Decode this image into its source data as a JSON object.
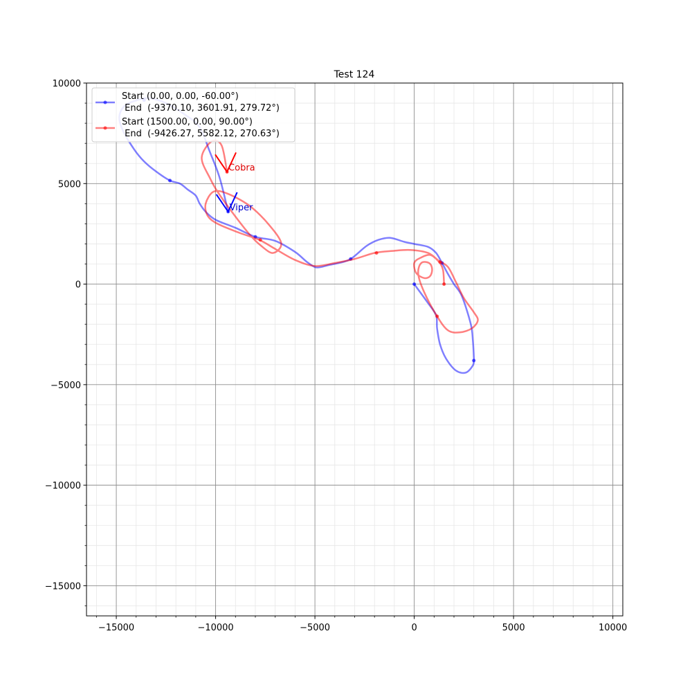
{
  "chart_data": {
    "type": "line",
    "title": "Test 124",
    "xlabel": "",
    "ylabel": "",
    "xlim": [
      -16500,
      10500
    ],
    "ylim": [
      -16500,
      10000
    ],
    "grid": true,
    "legend_location": "top-left",
    "x_ticks": [
      {
        "value": -15000,
        "label": "−15000"
      },
      {
        "value": -10000,
        "label": "−10000"
      },
      {
        "value": -5000,
        "label": "−5000"
      },
      {
        "value": 0,
        "label": "0"
      },
      {
        "value": 5000,
        "label": "5000"
      },
      {
        "value": 10000,
        "label": "10000"
      }
    ],
    "y_ticks": [
      {
        "value": 10000,
        "label": "10000"
      },
      {
        "value": 5000,
        "label": "5000"
      },
      {
        "value": 0,
        "label": "0"
      },
      {
        "value": -5000,
        "label": "−5000"
      },
      {
        "value": -10000,
        "label": "−10000"
      },
      {
        "value": -15000,
        "label": "−15000"
      }
    ],
    "series": [
      {
        "name": "Viper",
        "color": "#0000ff",
        "legend_line1": "Start (0.00, 0.00, -60.00°)",
        "legend_line2": " End  (-9370.10, 3601.91, 279.72°)",
        "label": "Viper",
        "label_color": "#0000cc",
        "end_heading_deg": 279.72,
        "path": [
          [
            0,
            0
          ],
          [
            700,
            -950
          ],
          [
            1100,
            -1550
          ],
          [
            1150,
            -2200
          ],
          [
            1300,
            -3000
          ],
          [
            1600,
            -3700
          ],
          [
            2100,
            -4300
          ],
          [
            2600,
            -4400
          ],
          [
            2950,
            -4050
          ],
          [
            3000,
            -3800
          ],
          [
            3000,
            -3600
          ],
          [
            2950,
            -2800
          ],
          [
            2850,
            -2000
          ],
          [
            2400,
            -600
          ],
          [
            2000,
            0
          ],
          [
            1700,
            500
          ],
          [
            1400,
            1050
          ],
          [
            1100,
            1550
          ],
          [
            700,
            1850
          ],
          [
            0,
            2000
          ],
          [
            -500,
            2100
          ],
          [
            -1200,
            2300
          ],
          [
            -1800,
            2200
          ],
          [
            -2400,
            1900
          ],
          [
            -3200,
            1250
          ],
          [
            -3800,
            1050
          ],
          [
            -4300,
            950
          ],
          [
            -4700,
            850
          ],
          [
            -5000,
            850
          ],
          [
            -5400,
            1100
          ],
          [
            -6000,
            1600
          ],
          [
            -7000,
            2150
          ],
          [
            -8000,
            2350
          ],
          [
            -9000,
            2800
          ],
          [
            -10000,
            3200
          ],
          [
            -10500,
            3600
          ],
          [
            -10800,
            4000
          ],
          [
            -11000,
            4400
          ],
          [
            -11400,
            4700
          ],
          [
            -11800,
            5000
          ],
          [
            -12300,
            5150
          ],
          [
            -13000,
            5600
          ],
          [
            -13600,
            6100
          ],
          [
            -14100,
            6700
          ],
          [
            -14650,
            7600
          ],
          [
            -14850,
            8300
          ],
          [
            -14600,
            8850
          ],
          [
            -14100,
            9100
          ],
          [
            -13400,
            9250
          ],
          [
            -12500,
            9000
          ],
          [
            -11500,
            8400
          ],
          [
            -10800,
            7800
          ],
          [
            -10300,
            6600
          ],
          [
            -9800,
            5300
          ],
          [
            -9370,
            3602
          ]
        ],
        "markers": [
          [
            0,
            0
          ],
          [
            3000,
            -3800
          ],
          [
            1400,
            1050
          ],
          [
            -3200,
            1250
          ],
          [
            -8000,
            2350
          ],
          [
            -12300,
            5150
          ],
          [
            -13600,
            9150
          ],
          [
            -9370,
            3602
          ]
        ]
      },
      {
        "name": "Cobra",
        "color": "#ff0000",
        "legend_line1": "Start (1500.00, 0.00, 90.00°)",
        "legend_line2": " End  (-9426.27, 5582.12, 270.63°)",
        "label": "Cobra",
        "label_color": "#dd0000",
        "end_heading_deg": 270.63,
        "path": [
          [
            1500,
            0
          ],
          [
            1450,
            700
          ],
          [
            1250,
            1100
          ],
          [
            800,
            1450
          ],
          [
            300,
            1300
          ],
          [
            0,
            1050
          ],
          [
            100,
            550
          ],
          [
            500,
            300
          ],
          [
            800,
            400
          ],
          [
            900,
            750
          ],
          [
            750,
            1050
          ],
          [
            350,
            1050
          ],
          [
            200,
            500
          ],
          [
            500,
            -400
          ],
          [
            1150,
            -1600
          ],
          [
            1700,
            -2300
          ],
          [
            2300,
            -2400
          ],
          [
            2900,
            -2200
          ],
          [
            3200,
            -1800
          ],
          [
            3000,
            -1400
          ],
          [
            2500,
            -700
          ],
          [
            2100,
            100
          ],
          [
            1700,
            850
          ],
          [
            1250,
            1150
          ],
          [
            700,
            1550
          ],
          [
            -200,
            1700
          ],
          [
            -1100,
            1650
          ],
          [
            -2000,
            1550
          ],
          [
            -3000,
            1250
          ],
          [
            -4000,
            1050
          ],
          [
            -5000,
            900
          ],
          [
            -6000,
            1200
          ],
          [
            -7000,
            1750
          ],
          [
            -7800,
            2200
          ],
          [
            -8800,
            2550
          ],
          [
            -9900,
            3000
          ],
          [
            -10400,
            3400
          ],
          [
            -10500,
            4000
          ],
          [
            -10100,
            4600
          ],
          [
            -9400,
            4500
          ],
          [
            -8300,
            3900
          ],
          [
            -7400,
            3050
          ],
          [
            -6700,
            2050
          ],
          [
            -7100,
            1550
          ],
          [
            -7700,
            1900
          ],
          [
            -8400,
            2600
          ],
          [
            -9700,
            4300
          ],
          [
            -10300,
            5300
          ],
          [
            -10700,
            6300
          ],
          [
            -10200,
            7100
          ],
          [
            -9700,
            6900
          ],
          [
            -9426,
            5582
          ]
        ],
        "markers": [
          [
            1500,
            0
          ],
          [
            1150,
            -1600
          ],
          [
            1300,
            1100
          ],
          [
            -1900,
            1550
          ],
          [
            -7750,
            2200
          ],
          [
            -9426,
            5582
          ]
        ]
      }
    ]
  }
}
